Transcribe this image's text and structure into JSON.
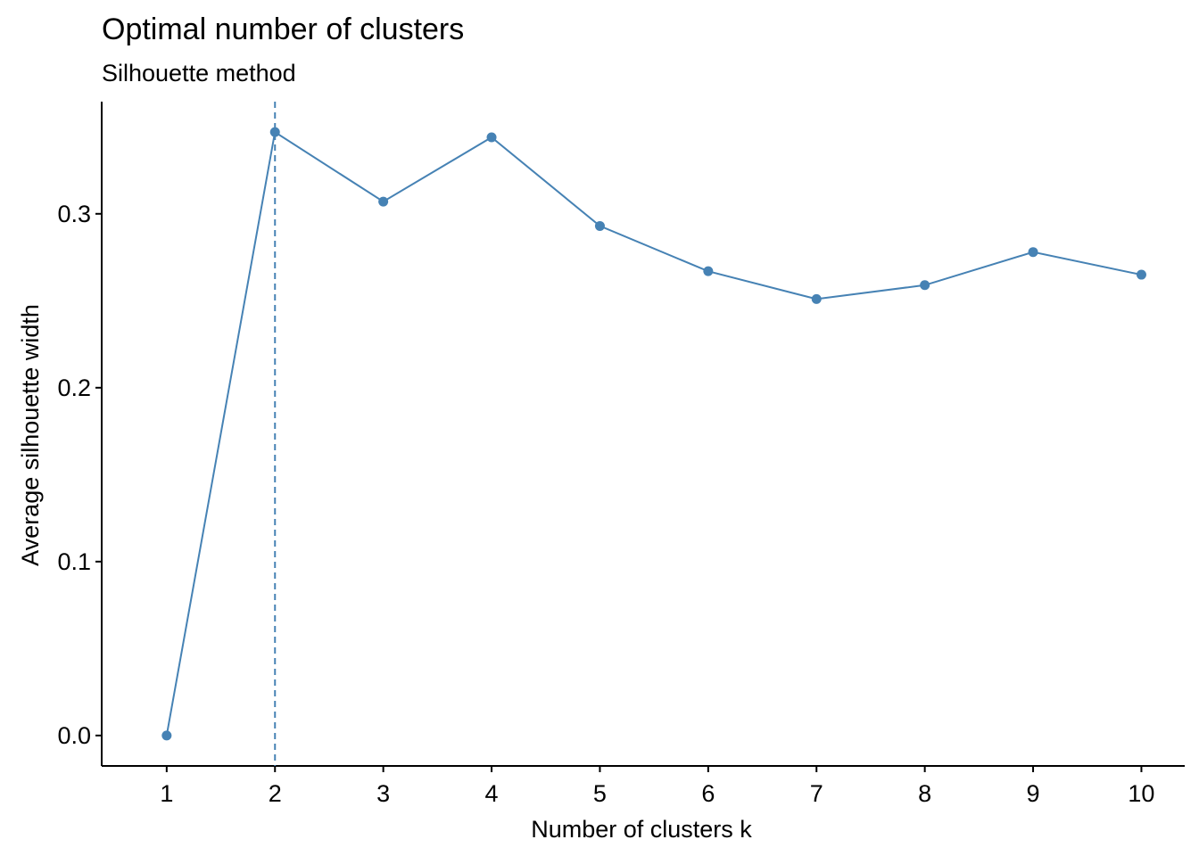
{
  "chart_data": {
    "type": "line",
    "title": "Optimal number of clusters",
    "subtitle": "Silhouette method",
    "xlabel": "Number of clusters k",
    "ylabel": "Average silhouette width",
    "x": [
      1,
      2,
      3,
      4,
      5,
      6,
      7,
      8,
      9,
      10
    ],
    "x_ticks": [
      "1",
      "2",
      "3",
      "4",
      "5",
      "6",
      "7",
      "8",
      "9",
      "10"
    ],
    "series": [
      {
        "values": [
          0.0,
          0.347,
          0.307,
          0.344,
          0.293,
          0.267,
          0.251,
          0.259,
          0.278,
          0.265
        ]
      }
    ],
    "y_ticks": [
      "0.0",
      "0.1",
      "0.2",
      "0.3"
    ],
    "y_tick_values": [
      0.0,
      0.1,
      0.2,
      0.3
    ],
    "xlim": [
      0.4,
      10.4
    ],
    "ylim": [
      -0.0175,
      0.3645
    ],
    "optimal_k": 2,
    "grid": false,
    "colors": {
      "series": "#4682B4",
      "axis": "#000000"
    }
  }
}
